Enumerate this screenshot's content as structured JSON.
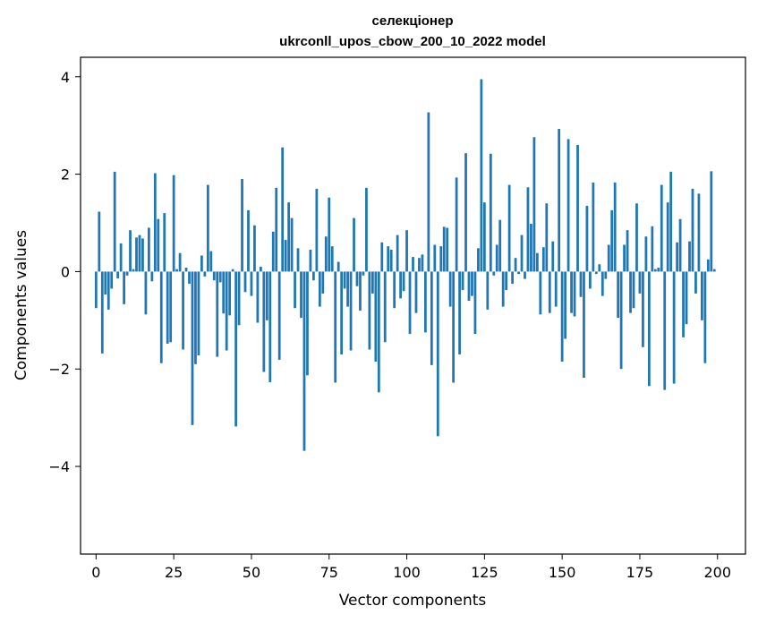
{
  "chart_data": {
    "type": "bar",
    "title": "селекціонер",
    "subtitle": "ukrconll_upos_cbow_200_10_2022 model",
    "xlabel": "Vector components",
    "ylabel": "Components values",
    "xlim": [
      -5,
      209
    ],
    "ylim": [
      -5.8,
      4.4
    ],
    "xticks": [
      0,
      25,
      50,
      75,
      100,
      125,
      150,
      175,
      200
    ],
    "xtick_labels": [
      "0",
      "25",
      "50",
      "75",
      "100",
      "125",
      "150",
      "175",
      "200"
    ],
    "yticks": [
      -4,
      -2,
      0,
      2,
      4
    ],
    "ytick_labels": [
      "−4",
      "−2",
      "0",
      "2",
      "4"
    ],
    "grid": false,
    "bar_color": "#1f77b4",
    "x": [
      0,
      1,
      2,
      3,
      4,
      5,
      6,
      7,
      8,
      9,
      10,
      11,
      12,
      13,
      14,
      15,
      16,
      17,
      18,
      19,
      20,
      21,
      22,
      23,
      24,
      25,
      26,
      27,
      28,
      29,
      30,
      31,
      32,
      33,
      34,
      35,
      36,
      37,
      38,
      39,
      40,
      41,
      42,
      43,
      44,
      45,
      46,
      47,
      48,
      49,
      50,
      51,
      52,
      53,
      54,
      55,
      56,
      57,
      58,
      59,
      60,
      61,
      62,
      63,
      64,
      65,
      66,
      67,
      68,
      69,
      70,
      71,
      72,
      73,
      74,
      75,
      76,
      77,
      78,
      79,
      80,
      81,
      82,
      83,
      84,
      85,
      86,
      87,
      88,
      89,
      90,
      91,
      92,
      93,
      94,
      95,
      96,
      97,
      98,
      99,
      100,
      101,
      102,
      103,
      104,
      105,
      106,
      107,
      108,
      109,
      110,
      111,
      112,
      113,
      114,
      115,
      116,
      117,
      118,
      119,
      120,
      121,
      122,
      123,
      124,
      125,
      126,
      127,
      128,
      129,
      130,
      131,
      132,
      133,
      134,
      135,
      136,
      137,
      138,
      139,
      140,
      141,
      142,
      143,
      144,
      145,
      146,
      147,
      148,
      149,
      150,
      151,
      152,
      153,
      154,
      155,
      156,
      157,
      158,
      159,
      160,
      161,
      162,
      163,
      164,
      165,
      166,
      167,
      168,
      169,
      170,
      171,
      172,
      173,
      174,
      175,
      176,
      177,
      178,
      179,
      180,
      181,
      182,
      183,
      184,
      185,
      186,
      187,
      188,
      189,
      190,
      191,
      192,
      193,
      194,
      195,
      196,
      197,
      198,
      199
    ],
    "values": [
      -0.75,
      1.23,
      -1.68,
      -0.47,
      -0.78,
      -0.35,
      2.05,
      -0.14,
      0.58,
      -0.67,
      -0.08,
      0.85,
      0.05,
      0.7,
      0.75,
      0.68,
      -0.88,
      0.9,
      -0.2,
      2.02,
      1.08,
      -1.88,
      1.2,
      -1.48,
      -1.45,
      1.98,
      0.05,
      0.38,
      -1.6,
      0.08,
      -0.25,
      -3.15,
      -1.9,
      -1.72,
      0.33,
      -0.1,
      1.78,
      0.42,
      -0.18,
      -1.75,
      -0.22,
      -0.86,
      -1.62,
      -0.9,
      0.05,
      -3.18,
      -1.1,
      1.9,
      -0.42,
      1.26,
      -0.5,
      0.95,
      -1.05,
      0.1,
      -2.06,
      -1.0,
      -2.27,
      0.82,
      1.72,
      -1.81,
      2.55,
      0.65,
      1.42,
      1.1,
      -0.75,
      0.48,
      -0.95,
      -3.68,
      -2.13,
      0.45,
      -0.18,
      1.7,
      -0.72,
      -0.45,
      0.72,
      1.52,
      0.52,
      -2.28,
      0.2,
      -1.7,
      -0.35,
      -0.72,
      -1.62,
      1.1,
      -0.3,
      -0.8,
      -0.08,
      1.72,
      -1.6,
      -0.45,
      -1.85,
      -2.48,
      0.6,
      -1.45,
      0.52,
      0.45,
      -0.75,
      0.75,
      -0.55,
      -0.4,
      0.85,
      -1.28,
      0.3,
      -0.85,
      0.28,
      0.35,
      -1.25,
      3.27,
      -1.92,
      0.55,
      -3.38,
      0.52,
      0.92,
      0.9,
      -0.72,
      -2.28,
      1.93,
      -1.7,
      -0.38,
      2.43,
      -0.6,
      -0.5,
      -1.28,
      0.48,
      3.95,
      1.42,
      -0.78,
      2.42,
      -0.08,
      0.55,
      1.06,
      -0.72,
      -0.38,
      1.78,
      -0.25,
      0.28,
      -0.05,
      0.75,
      -0.15,
      1.73,
      0.98,
      2.76,
      0.38,
      -0.88,
      0.5,
      1.4,
      -0.85,
      0.62,
      -0.72,
      2.93,
      -1.85,
      -1.38,
      2.72,
      -0.85,
      -0.92,
      2.6,
      -0.52,
      -2.18,
      1.35,
      -0.35,
      1.83,
      -0.05,
      0.15,
      -0.5,
      -0.15,
      0.55,
      1.26,
      1.83,
      -0.95,
      -2.0,
      0.55,
      0.85,
      -0.85,
      -0.75,
      1.4,
      -0.45,
      -1.55,
      0.72,
      -2.35,
      0.93,
      0.05,
      0.08,
      1.78,
      -2.43,
      1.42,
      2.05,
      -2.3,
      0.6,
      1.08,
      -1.35,
      -1.08,
      0.62,
      1.7,
      -0.45,
      1.6,
      -1.0,
      -1.88,
      0.25,
      2.06,
      0.05
    ]
  }
}
